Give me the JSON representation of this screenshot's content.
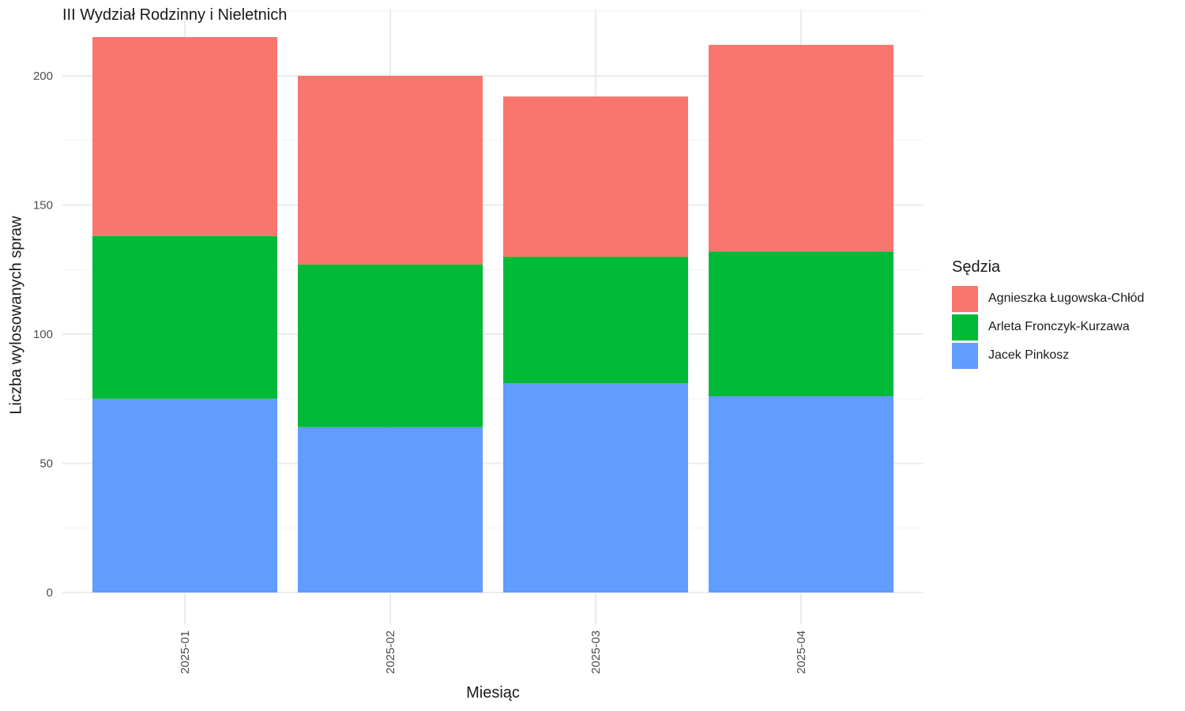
{
  "chart_data": {
    "type": "bar",
    "stacked": true,
    "title": "III Wydział Rodzinny i Nieletnich",
    "xlabel": "Miesiąc",
    "ylabel": "Liczba wylosowanych spraw",
    "categories": [
      "2025-01",
      "2025-02",
      "2025-03",
      "2025-04"
    ],
    "ylim": [
      0,
      220
    ],
    "yticks": [
      0,
      50,
      100,
      150,
      200
    ],
    "grid": true,
    "legend_title": "Sędzia",
    "legend_position": "right",
    "series": [
      {
        "name": "Agnieszka Ługowska-Chłód",
        "color": "#F8766D",
        "values": [
          77,
          73,
          62,
          80
        ]
      },
      {
        "name": "Arleta Fronczyk-Kurzawa",
        "color": "#00BA38",
        "values": [
          63,
          63,
          49,
          56
        ]
      },
      {
        "name": "Jacek Pinkosz",
        "color": "#619CFF",
        "values": [
          75,
          64,
          81,
          76
        ]
      }
    ]
  }
}
